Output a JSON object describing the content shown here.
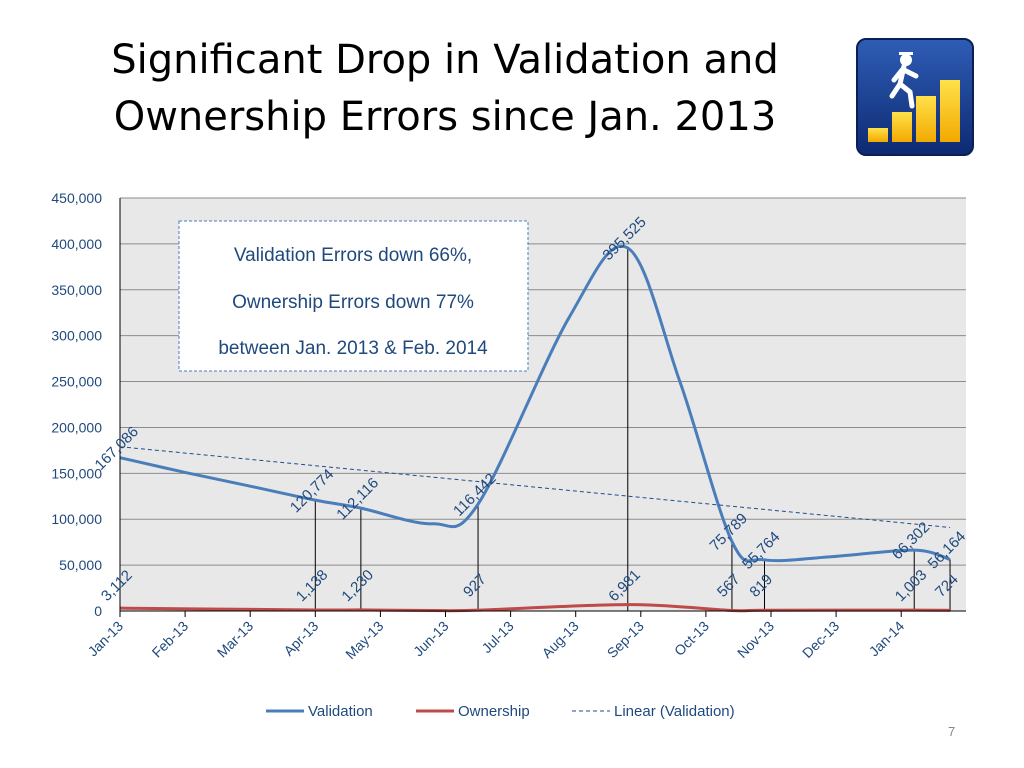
{
  "slide": {
    "title_line1": "Significant Drop in Validation and",
    "title_line2": "Ownership Errors since Jan. 2013",
    "page_number": "7",
    "annotation": [
      "Validation Errors down 66%,",
      "Ownership Errors down 77%",
      "between Jan. 2013 & Feb. 2014"
    ],
    "logo_icon": "person-climbing-bar-chart-icon"
  },
  "colors": {
    "validation": "#4a7ebb",
    "ownership": "#be4b48",
    "trend": "#1f4e8c",
    "plot_bg": "#e8e8e8",
    "label": "#1f497d"
  },
  "chart_data": {
    "type": "line",
    "categories": [
      "Jan-13",
      "Feb-13",
      "Mar-13",
      "Apr-13",
      "May-13",
      "Jun-13",
      "Jul-13",
      "Aug-13",
      "Sep-13",
      "Oct-13",
      "Nov-13",
      "Dec-13",
      "Jan-14"
    ],
    "ylim": [
      0,
      450000
    ],
    "yticks": [
      0,
      50000,
      100000,
      150000,
      200000,
      250000,
      300000,
      350000,
      400000,
      450000
    ],
    "ytick_labels": [
      "0",
      "50,000",
      "100,000",
      "150,000",
      "200,000",
      "250,000",
      "300,000",
      "350,000",
      "400,000",
      "450,000"
    ],
    "grid": true,
    "legend_position": "bottom",
    "series": [
      {
        "name": "Validation",
        "style": "smooth-line",
        "points": [
          {
            "x": 0.0,
            "y": 167086
          },
          {
            "x": 1.0,
            "y": 151000
          },
          {
            "x": 2.0,
            "y": 136000
          },
          {
            "x": 3.0,
            "y": 120774
          },
          {
            "x": 3.7,
            "y": 112116
          },
          {
            "x": 4.8,
            "y": 95000
          },
          {
            "x": 5.5,
            "y": 116442
          },
          {
            "x": 6.9,
            "y": 320000
          },
          {
            "x": 7.8,
            "y": 395525
          },
          {
            "x": 8.6,
            "y": 250000
          },
          {
            "x": 9.4,
            "y": 75789
          },
          {
            "x": 9.9,
            "y": 55764
          },
          {
            "x": 10.9,
            "y": 59000
          },
          {
            "x": 12.2,
            "y": 66302
          },
          {
            "x": 12.75,
            "y": 56164
          }
        ]
      },
      {
        "name": "Ownership",
        "style": "smooth-line",
        "points": [
          {
            "x": 0.0,
            "y": 3112
          },
          {
            "x": 3.0,
            "y": 1138
          },
          {
            "x": 3.7,
            "y": 1230
          },
          {
            "x": 4.8,
            "y": 500
          },
          {
            "x": 5.5,
            "y": 927
          },
          {
            "x": 7.8,
            "y": 6981
          },
          {
            "x": 9.4,
            "y": 567
          },
          {
            "x": 9.9,
            "y": 819
          },
          {
            "x": 12.2,
            "y": 1003
          },
          {
            "x": 12.75,
            "y": 724
          }
        ]
      },
      {
        "name": "Linear (Validation)",
        "style": "dashed-trend",
        "points": [
          {
            "x": 0.0,
            "y": 179000
          },
          {
            "x": 12.75,
            "y": 91000
          }
        ]
      }
    ],
    "data_labels": [
      {
        "x": 0.0,
        "top": "167,086",
        "bottom": "3,112"
      },
      {
        "x": 3.0,
        "top": "120,774",
        "bottom": "1,138"
      },
      {
        "x": 3.7,
        "top": "112,116",
        "bottom": "1,230"
      },
      {
        "x": 5.5,
        "top": "116,442",
        "bottom": "927"
      },
      {
        "x": 7.8,
        "top": "395,525",
        "bottom": "6,981"
      },
      {
        "x": 9.4,
        "top": "75,789",
        "bottom": "567"
      },
      {
        "x": 9.9,
        "top": "55,764",
        "bottom": "819"
      },
      {
        "x": 12.2,
        "top": "66,302",
        "bottom": "1,003"
      },
      {
        "x": 12.75,
        "top": "56,164",
        "bottom": "724"
      }
    ]
  }
}
